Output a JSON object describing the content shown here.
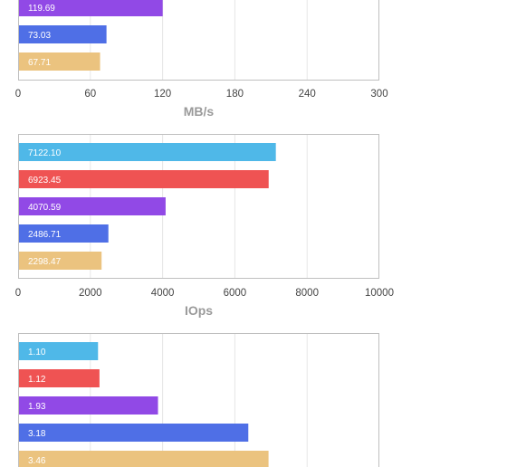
{
  "colors": {
    "series": [
      "#4fb8e8",
      "#ef5353",
      "#9149e6",
      "#4f6fe6",
      "#ebc37f"
    ],
    "frame": "#bfbfbf",
    "grid": "#e6e6e6",
    "tick_text": "#444444",
    "axis_title": "#9a9a9a"
  },
  "chart_data": [
    {
      "type": "bar",
      "orientation": "horizontal",
      "values": [
        119.69,
        73.03,
        67.71
      ],
      "labels": [
        "119.69",
        "73.03",
        "67.71"
      ],
      "xlim": [
        0,
        300
      ],
      "ticks": [
        "0",
        "60",
        "120",
        "180",
        "240",
        "300"
      ],
      "xlabel": "MB/s",
      "grid": true
    },
    {
      "type": "bar",
      "orientation": "horizontal",
      "values": [
        7122.1,
        6923.45,
        4070.59,
        2486.71,
        2298.47
      ],
      "labels": [
        "7122.10",
        "6923.45",
        "4070.59",
        "2486.71",
        "2298.47"
      ],
      "xlim": [
        0,
        10000
      ],
      "ticks": [
        "0",
        "2000",
        "4000",
        "6000",
        "8000",
        "10000"
      ],
      "xlabel": "IOps",
      "grid": true
    },
    {
      "type": "bar",
      "orientation": "horizontal",
      "values": [
        1.1,
        1.12,
        1.93,
        3.18,
        3.46
      ],
      "labels": [
        "1.10",
        "1.12",
        "1.93",
        "3.18",
        "3.46"
      ],
      "xlim": [
        0,
        5
      ],
      "ticks": [],
      "xlabel": "",
      "grid": true
    }
  ]
}
